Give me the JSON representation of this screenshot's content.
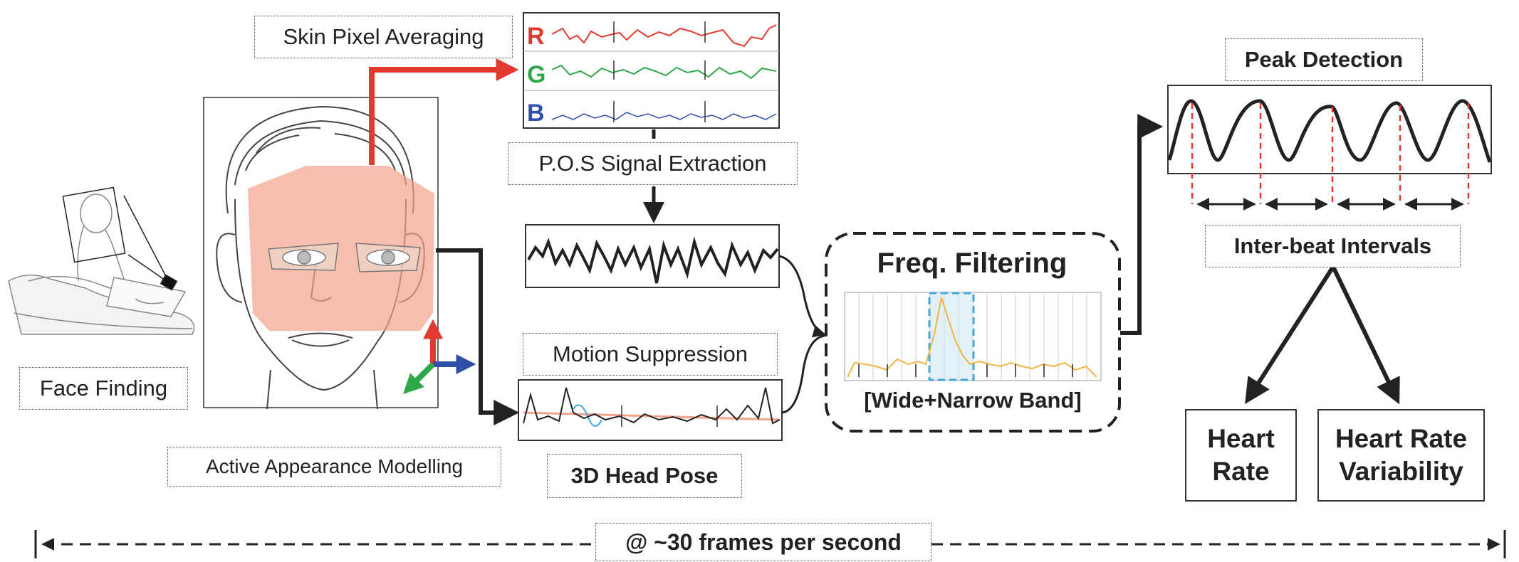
{
  "labels": {
    "skin_pixel_averaging": "Skin Pixel Averaging",
    "face_finding": "Face Finding",
    "active_appearance_modelling": "Active Appearance Modelling",
    "pos_signal_extraction": "P.O.S Signal Extraction",
    "motion_suppression": "Motion Suppression",
    "head_pose": "3D Head Pose",
    "freq_filtering": "Freq. Filtering",
    "band": "[Wide+Narrow Band]",
    "peak_detection": "Peak Detection",
    "inter_beat_intervals": "Inter-beat Intervals",
    "heart_rate": "Heart\nRate",
    "heart_rate_variability": "Heart Rate\nVariability",
    "frame_rate": "@ ~30 frames per second"
  },
  "channels": [
    "R",
    "G",
    "B"
  ],
  "colors": {
    "red": "#e23a2e",
    "green": "#2fa84a",
    "blue": "#2f4fa8",
    "skin": "#f2a389",
    "filter_curve": "#f2b544",
    "filter_highlight": "#3ba7dc",
    "peak_line": "#e53935",
    "arrow": "#222222"
  },
  "icons": {
    "face": "face-drawing-icon",
    "person": "person-at-laptop-icon",
    "axes": "3d-axes-icon"
  }
}
